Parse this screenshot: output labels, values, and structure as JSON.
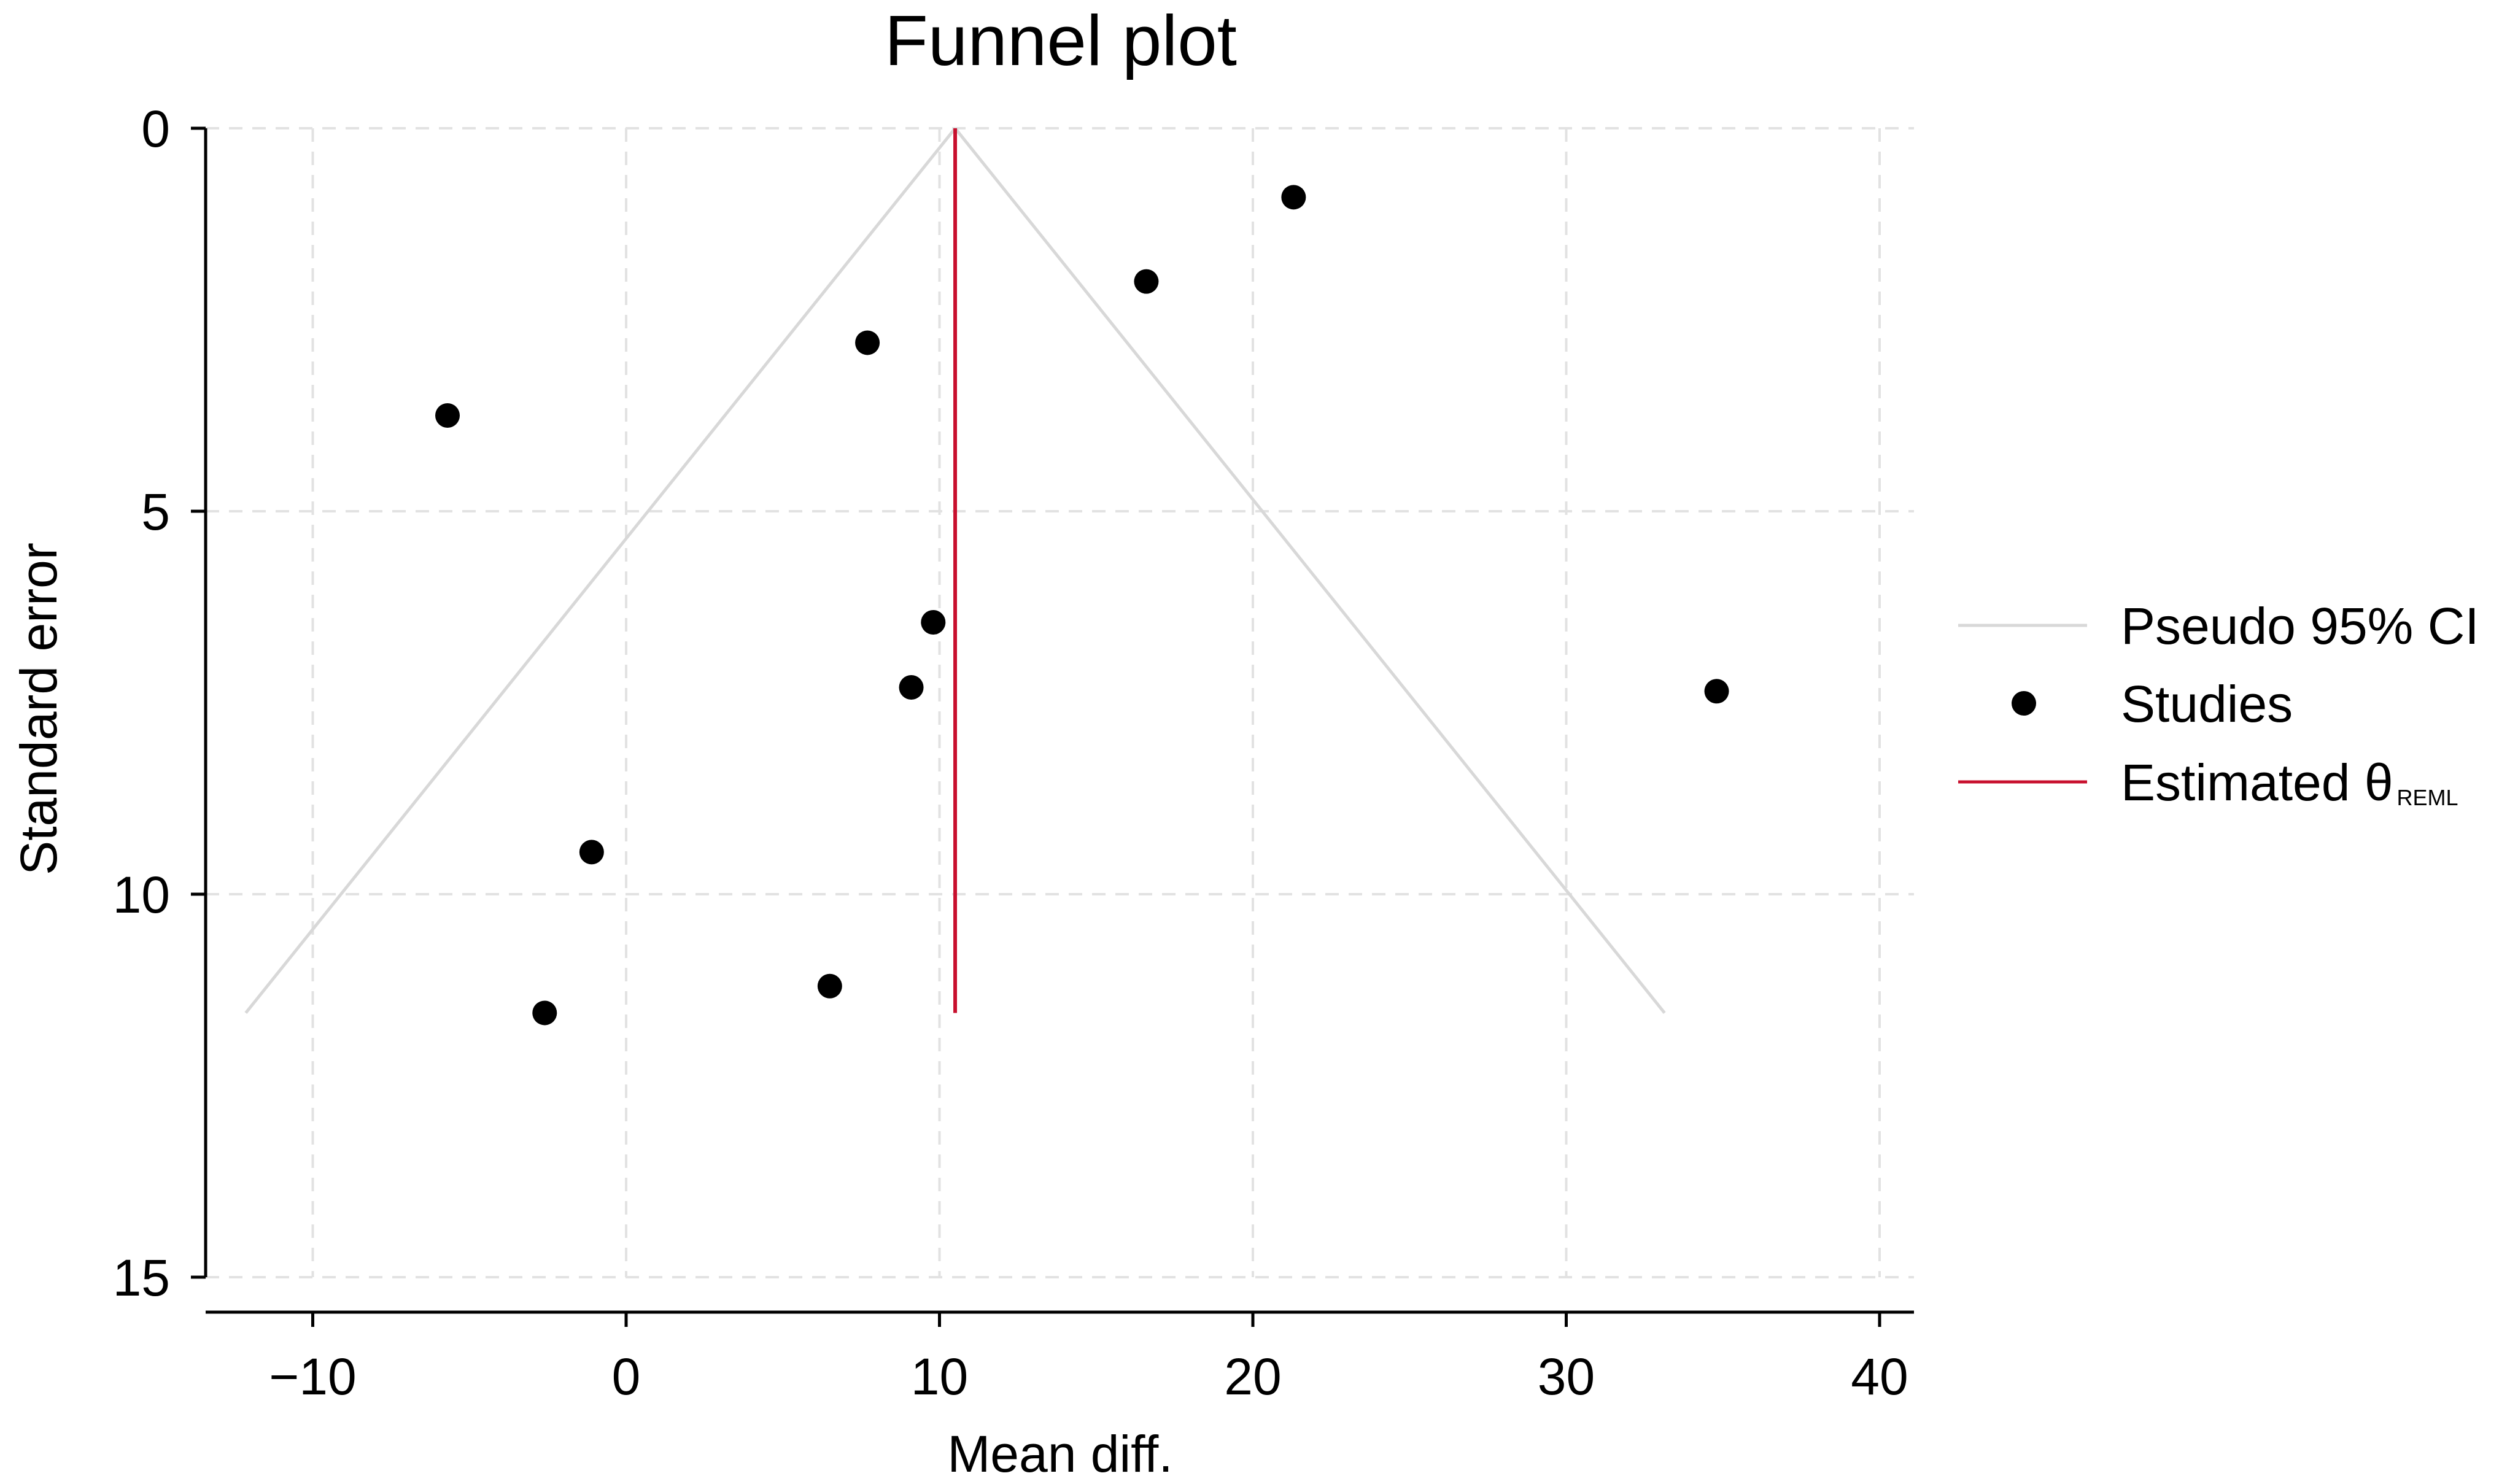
{
  "chart_data": {
    "type": "scatter",
    "title": "Funnel plot",
    "xlabel": "Mean diff.",
    "ylabel": "Standard error",
    "xlim": [
      -13.5,
      41.2
    ],
    "ylim": [
      0,
      15.5
    ],
    "y_inverted": true,
    "xticks": [
      -10,
      0,
      10,
      20,
      30,
      40
    ],
    "xtick_labels": [
      "−10",
      "0",
      "10",
      "20",
      "30",
      "40"
    ],
    "yticks": [
      0,
      5,
      10,
      15
    ],
    "ytick_labels": [
      "0",
      "5",
      "10",
      "15"
    ],
    "grid": true,
    "legend_position": "right",
    "studies": {
      "x": [
        21.3,
        16.6,
        7.7,
        -5.7,
        9.8,
        9.1,
        34.8,
        -1.1,
        6.5,
        -2.6
      ],
      "y": [
        0.9,
        2.0,
        2.8,
        3.75,
        6.45,
        7.3,
        7.35,
        9.45,
        11.2,
        11.55
      ]
    },
    "estimate": {
      "x": 10.5,
      "se_max": 11.55
    },
    "pseudo_ci": {
      "apex_x": 10.5,
      "se_max": 11.55,
      "z": 1.96
    },
    "legend": [
      {
        "key": "ci",
        "label": "Pseudo 95% CI",
        "sub": ""
      },
      {
        "key": "studies",
        "label": "Studies",
        "sub": ""
      },
      {
        "key": "estimate",
        "label": "Estimated θ",
        "sub": "REML"
      }
    ],
    "colors": {
      "ci": "#d8d8d8",
      "studies": "#000000",
      "estimate": "#c8102e",
      "grid": "#e2e2e2",
      "axis": "#000000"
    }
  }
}
